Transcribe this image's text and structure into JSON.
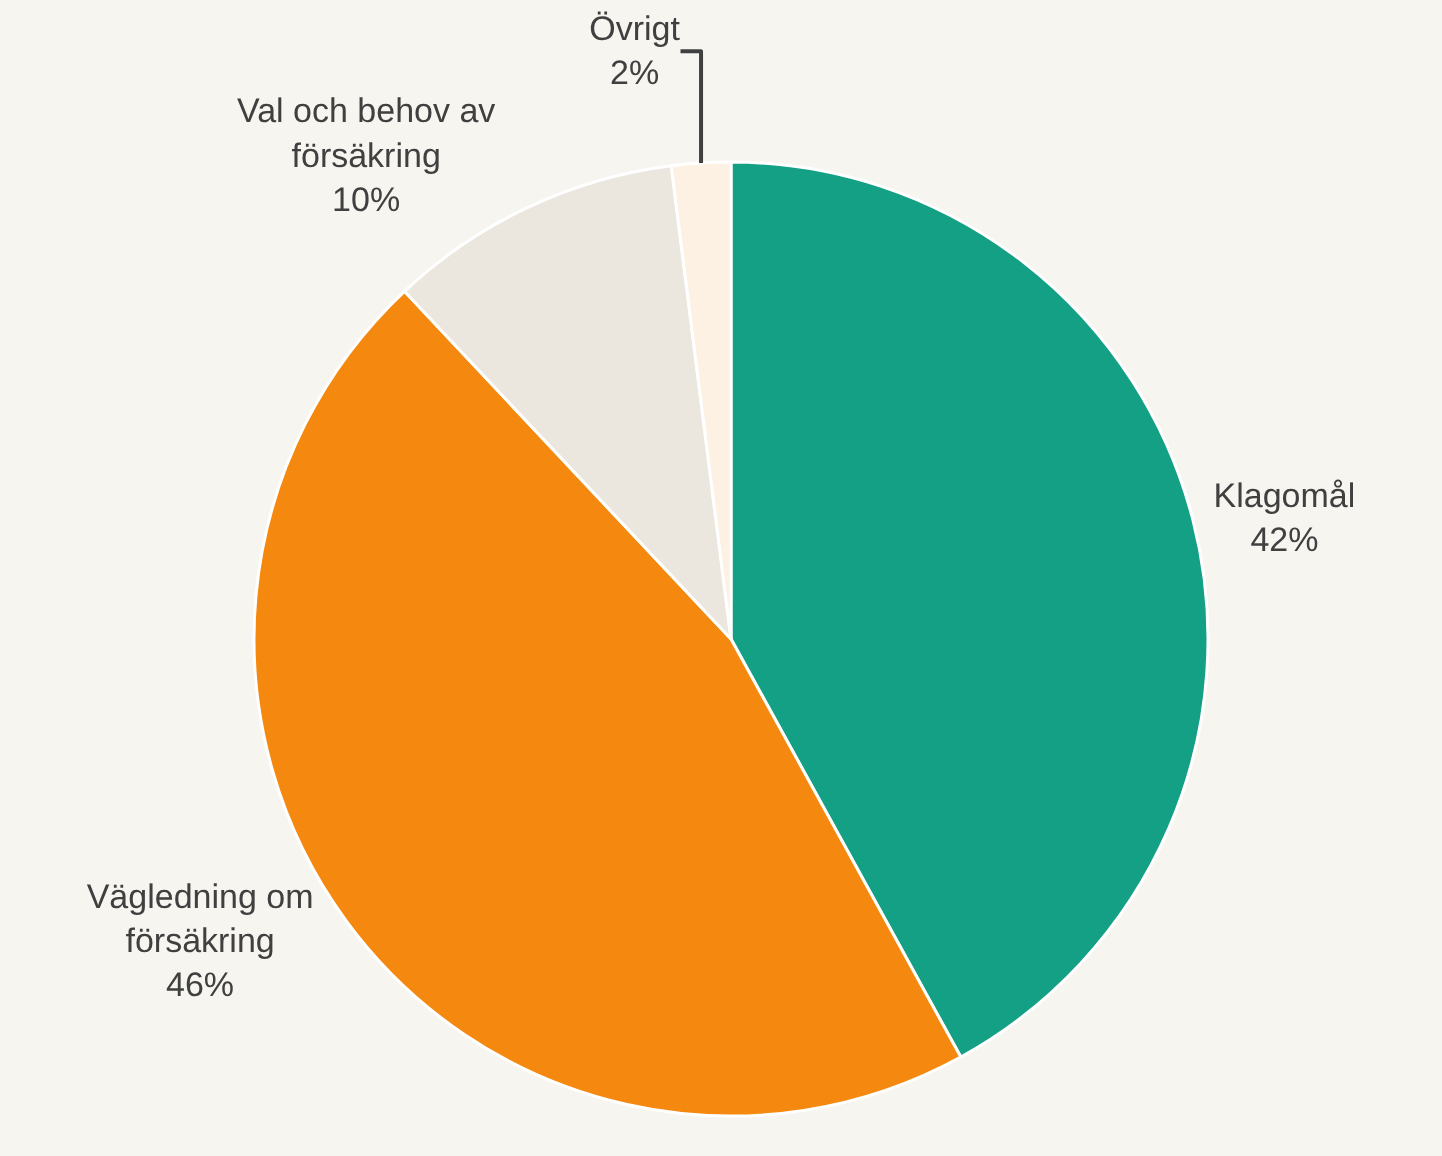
{
  "chart_data": {
    "type": "pie",
    "categories": [
      "Klagomål",
      "Vägledning om försäkring",
      "Val och behov av försäkring",
      "Övrigt"
    ],
    "values": [
      42,
      46,
      10,
      2
    ],
    "value_labels": [
      "42%",
      "46%",
      "10%",
      "2%"
    ],
    "colors": [
      "#14a085",
      "#f5890f",
      "#ebe6de",
      "#fdf1e4"
    ],
    "legend": false
  }
}
